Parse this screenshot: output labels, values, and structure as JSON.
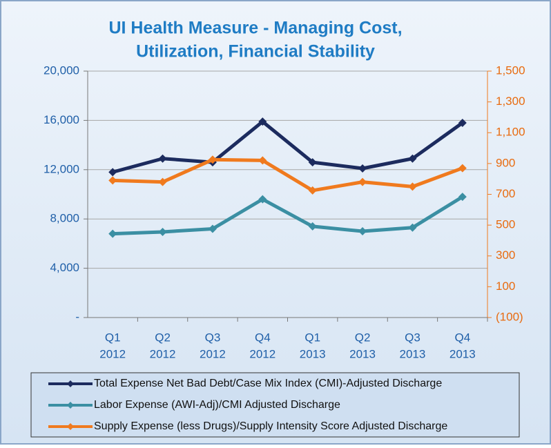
{
  "chart_data": {
    "type": "line",
    "title": [
      "UI Health Measure - Managing Cost,",
      "Utilization, Financial Stability"
    ],
    "categories": [
      [
        "Q1",
        "2012"
      ],
      [
        "Q2",
        "2012"
      ],
      [
        "Q3",
        "2012"
      ],
      [
        "Q4",
        "2012"
      ],
      [
        "Q1",
        "2013"
      ],
      [
        "Q2",
        "2013"
      ],
      [
        "Q3",
        "2013"
      ],
      [
        "Q4",
        "2013"
      ]
    ],
    "series": [
      {
        "name": "Total Expense Net Bad Debt/Case Mix Index (CMI)-Adjusted Discharge",
        "color": "#1c2b5e",
        "values": [
          11800,
          12900,
          12600,
          15900,
          12600,
          12100,
          12900,
          15800
        ]
      },
      {
        "name": "Labor Expense (AWI-Adj)/CMI Adjusted Discharge",
        "color": "#3b8fa3",
        "values": [
          6800,
          6950,
          7200,
          9600,
          7400,
          7000,
          7300,
          9800
        ]
      },
      {
        "name": "Supply Expense (less Drugs)/Supply Intensity Score Adjusted Discharge",
        "color": "#f07a1e",
        "axis": "y2",
        "values": [
          790,
          780,
          925,
          920,
          725,
          780,
          750,
          870
        ]
      }
    ],
    "ylim": [
      0,
      20000
    ],
    "yticks": [
      {
        "value": 0,
        "label": "-"
      },
      {
        "value": 4000,
        "label": "4,000"
      },
      {
        "value": 8000,
        "label": "8,000"
      },
      {
        "value": 12000,
        "label": "12,000"
      },
      {
        "value": 16000,
        "label": "16,000"
      },
      {
        "value": 20000,
        "label": "20,000"
      }
    ],
    "y2lim": [
      -100,
      1500
    ],
    "y2ticks": [
      {
        "value": -100,
        "label": "(100)"
      },
      100,
      300,
      500,
      700,
      900,
      {
        "value": 1100,
        "label": "1,100"
      },
      {
        "value": 1300,
        "label": "1,300"
      },
      {
        "value": 1500,
        "label": "1,500"
      }
    ],
    "grid": true
  }
}
